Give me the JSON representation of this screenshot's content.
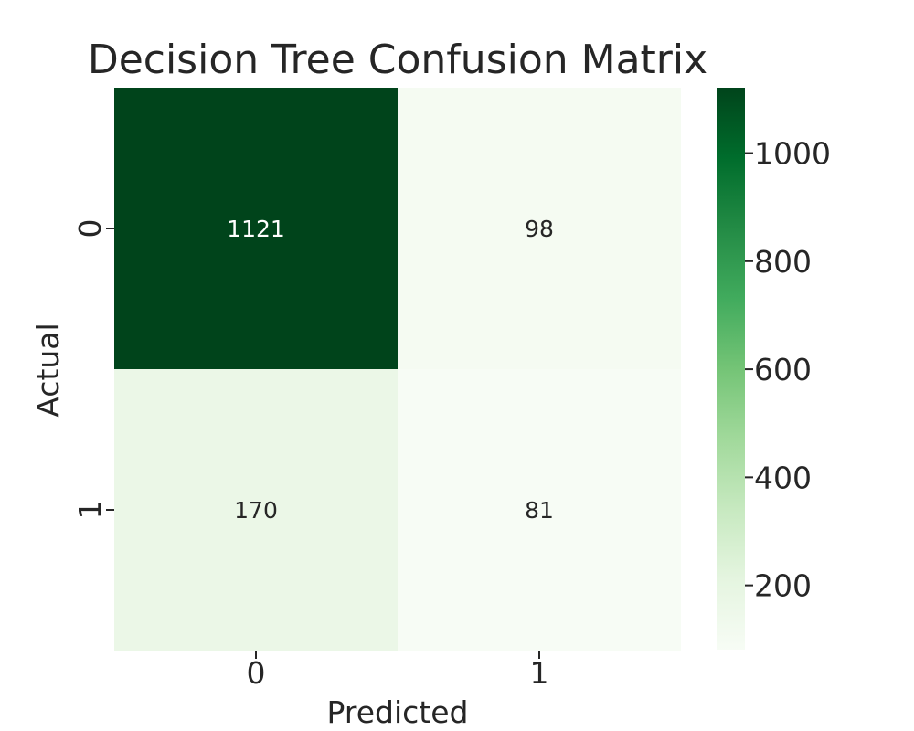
{
  "chart_data": {
    "type": "heatmap",
    "title": "Decision Tree Confusion Matrix",
    "xlabel": "Predicted",
    "ylabel": "Actual",
    "x_categories": [
      "0",
      "1"
    ],
    "y_categories": [
      "0",
      "1"
    ],
    "values": [
      [
        1121,
        98
      ],
      [
        170,
        81
      ]
    ],
    "colormap": "Greens",
    "colorbar": {
      "range": [
        81,
        1121
      ],
      "ticks": [
        200,
        400,
        600,
        800,
        1000
      ]
    },
    "annotations": true
  }
}
